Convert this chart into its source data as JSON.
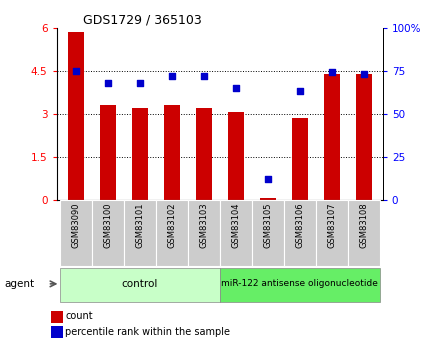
{
  "title": "GDS1729 / 365103",
  "categories": [
    "GSM83090",
    "GSM83100",
    "GSM83101",
    "GSM83102",
    "GSM83103",
    "GSM83104",
    "GSM83105",
    "GSM83106",
    "GSM83107",
    "GSM83108"
  ],
  "count_values": [
    5.85,
    3.3,
    3.2,
    3.3,
    3.2,
    3.05,
    0.07,
    2.85,
    4.4,
    4.4
  ],
  "percentile_values": [
    75,
    68,
    68,
    72,
    72,
    65,
    12,
    63,
    74,
    73
  ],
  "ylim_left": [
    0,
    6
  ],
  "ylim_right": [
    0,
    100
  ],
  "yticks_left": [
    0,
    1.5,
    3,
    4.5,
    6
  ],
  "ytick_labels_left": [
    "0",
    "1.5",
    "3",
    "4.5",
    "6"
  ],
  "yticks_right": [
    0,
    25,
    50,
    75,
    100
  ],
  "ytick_labels_right": [
    "0",
    "25",
    "50",
    "75",
    "100%"
  ],
  "bar_color": "#cc0000",
  "dot_color": "#0000cc",
  "bar_width": 0.5,
  "background_color": "#ffffff",
  "tick_bg_color": "#cccccc",
  "group1_label": "control",
  "group2_label": "miR-122 antisense oligonucleotide",
  "group1_indices": [
    0,
    1,
    2,
    3,
    4
  ],
  "group2_indices": [
    5,
    6,
    7,
    8,
    9
  ],
  "group_bg1": "#c8ffc8",
  "group_bg2": "#66ee66",
  "legend_count_label": "count",
  "legend_pct_label": "percentile rank within the sample",
  "agent_label": "agent"
}
